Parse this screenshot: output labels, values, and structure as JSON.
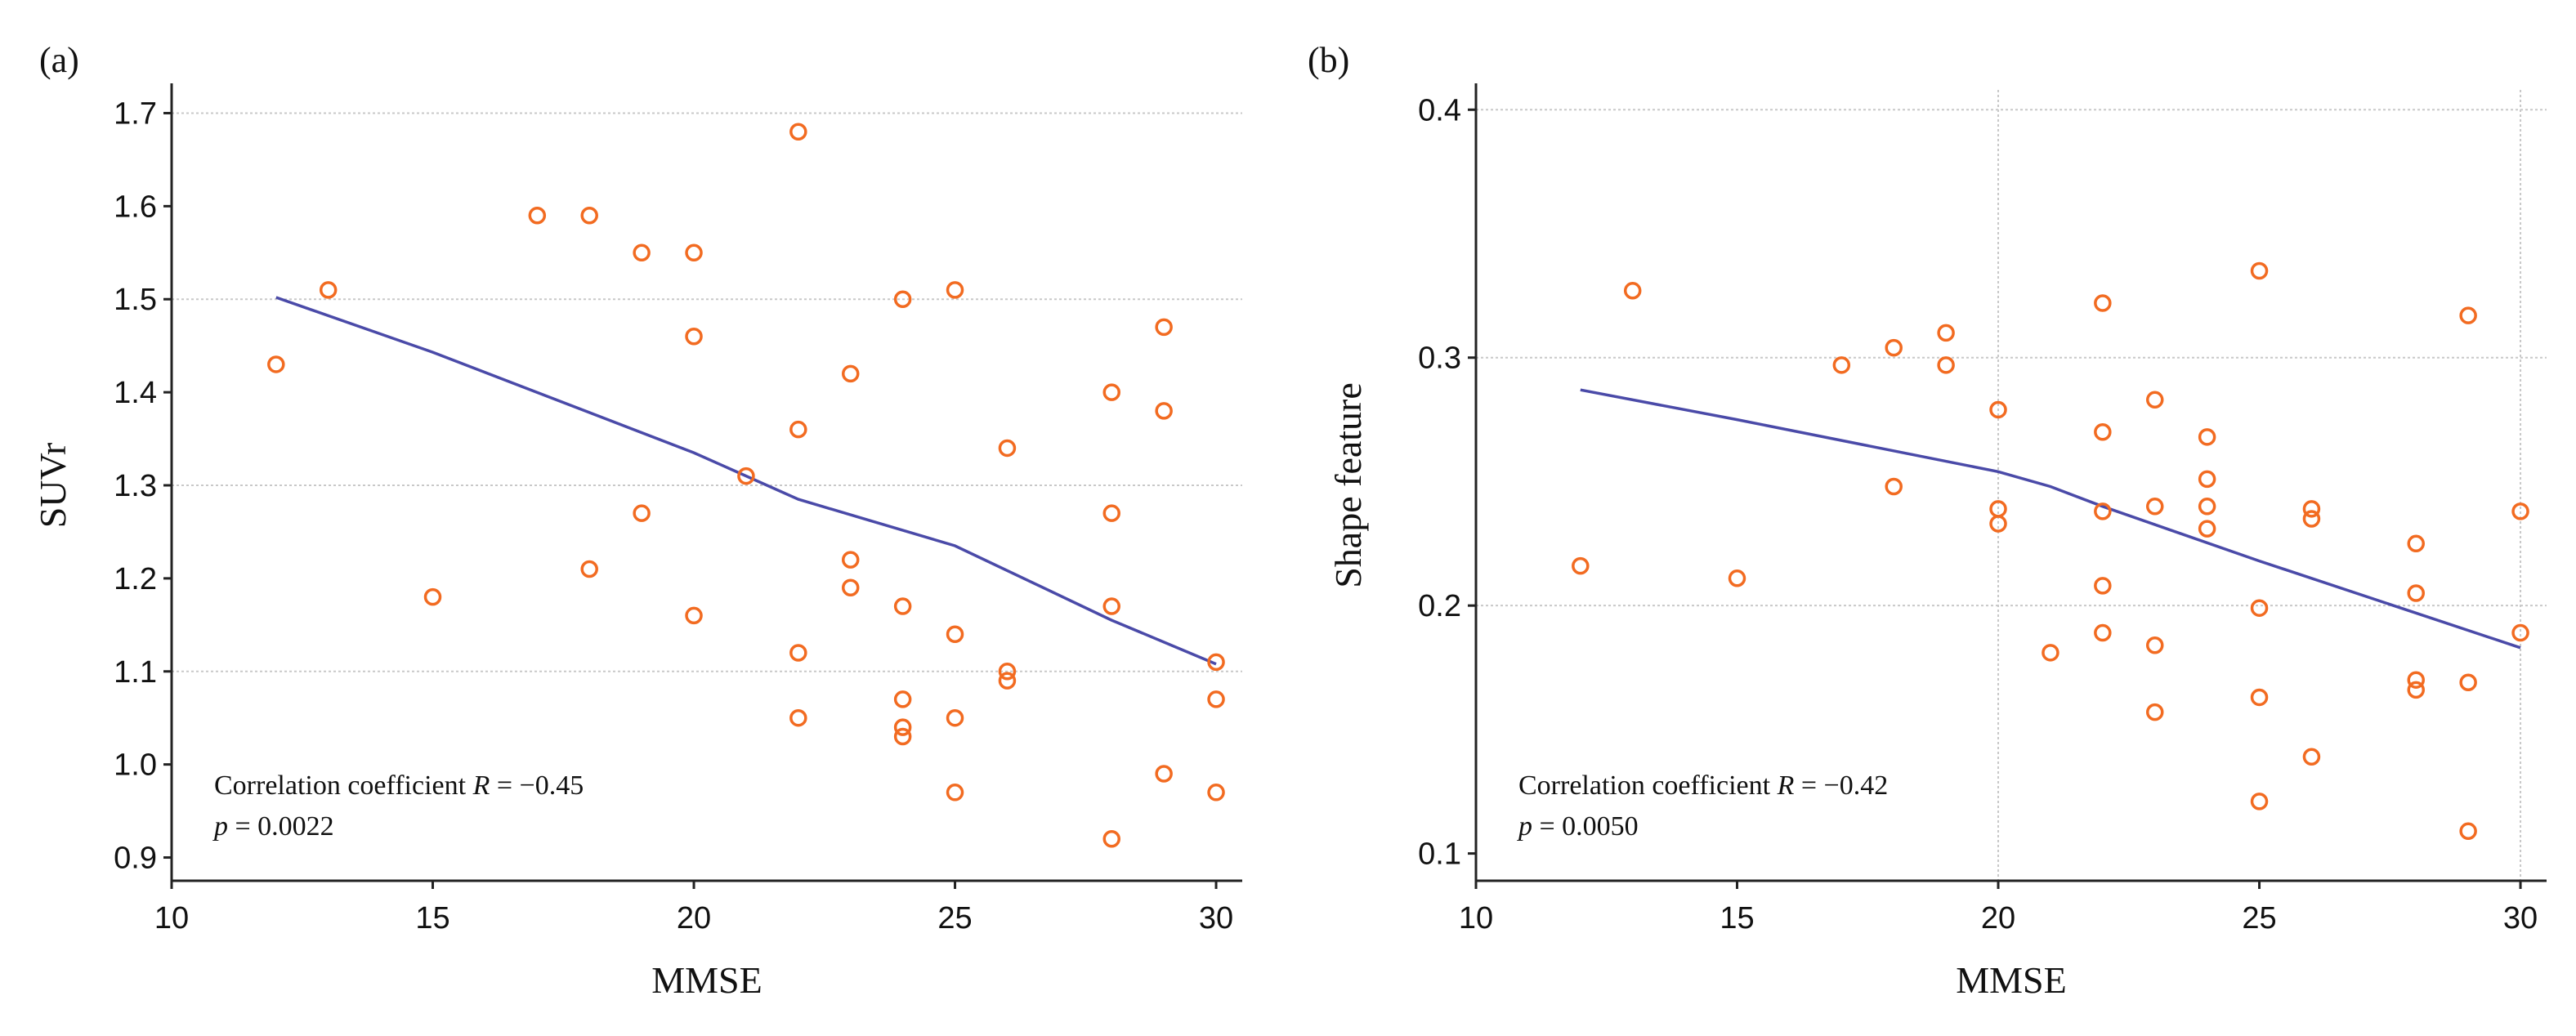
{
  "colors": {
    "points": "#f26b21",
    "fit": "#4a4aa8",
    "axis": "#222222",
    "grid": "#c8c8c8"
  },
  "chart_data": [
    {
      "type": "scatter",
      "panel": "(a)",
      "xlabel": "MMSE",
      "ylabel": "SUVr",
      "xlim": [
        10,
        30.5
      ],
      "ylim": [
        0.875,
        1.725
      ],
      "xticks": [
        10,
        15,
        20,
        25,
        30
      ],
      "yticks": [
        0.9,
        1.0,
        1.1,
        1.2,
        1.3,
        1.4,
        1.5,
        1.6,
        1.7
      ],
      "ytick_labels": [
        "0.9",
        "1.0",
        "1.1",
        "1.2",
        "1.3",
        "1.4",
        "1.5",
        "1.6",
        "1.7"
      ],
      "grid_y": [
        1.1,
        1.3,
        1.5,
        1.7
      ],
      "grid_x": [],
      "points": [
        [
          12,
          1.43
        ],
        [
          13,
          1.51
        ],
        [
          15,
          1.18
        ],
        [
          17,
          1.59
        ],
        [
          18,
          1.59
        ],
        [
          18,
          1.21
        ],
        [
          19,
          1.55
        ],
        [
          19,
          1.27
        ],
        [
          20,
          1.55
        ],
        [
          20,
          1.46
        ],
        [
          20,
          1.16
        ],
        [
          21,
          1.31
        ],
        [
          22,
          1.68
        ],
        [
          22,
          1.36
        ],
        [
          22,
          1.12
        ],
        [
          22,
          1.05
        ],
        [
          23,
          1.42
        ],
        [
          23,
          1.22
        ],
        [
          23,
          1.19
        ],
        [
          24,
          1.5
        ],
        [
          24,
          1.17
        ],
        [
          24,
          1.07
        ],
        [
          24,
          1.04
        ],
        [
          24,
          1.03
        ],
        [
          25,
          1.51
        ],
        [
          25,
          1.14
        ],
        [
          25,
          1.05
        ],
        [
          25,
          0.97
        ],
        [
          26,
          1.34
        ],
        [
          26,
          1.1
        ],
        [
          26,
          1.09
        ],
        [
          28,
          1.4
        ],
        [
          28,
          1.27
        ],
        [
          28,
          1.17
        ],
        [
          28,
          0.92
        ],
        [
          29,
          1.47
        ],
        [
          29,
          1.38
        ],
        [
          29,
          0.99
        ],
        [
          30,
          1.11
        ],
        [
          30,
          1.07
        ],
        [
          30,
          0.97
        ]
      ],
      "fit_line": [
        [
          12,
          1.502
        ],
        [
          15,
          1.443
        ],
        [
          20,
          1.335
        ],
        [
          22,
          1.285
        ],
        [
          25,
          1.235
        ],
        [
          28,
          1.155
        ],
        [
          30,
          1.108
        ]
      ],
      "annotation": {
        "label": "Correlation coefficient",
        "r_label": "R",
        "r_value": "= −0.45",
        "p_label": "p",
        "p_value": "= 0.0022"
      }
    },
    {
      "type": "scatter",
      "panel": "(b)",
      "xlabel": "MMSE",
      "ylabel": "Shape feature",
      "xlim": [
        10,
        30.5
      ],
      "ylim": [
        0.089,
        0.408
      ],
      "xticks": [
        10,
        15,
        20,
        25,
        30
      ],
      "yticks": [
        0.1,
        0.2,
        0.3,
        0.4
      ],
      "ytick_labels": [
        "0.1",
        "0.2",
        "0.3",
        "0.4"
      ],
      "grid_y": [
        0.2,
        0.3,
        0.4
      ],
      "grid_x": [
        20,
        30
      ],
      "points": [
        [
          12,
          0.216
        ],
        [
          13,
          0.327
        ],
        [
          15,
          0.211
        ],
        [
          17,
          0.297
        ],
        [
          18,
          0.304
        ],
        [
          18,
          0.248
        ],
        [
          19,
          0.31
        ],
        [
          19,
          0.297
        ],
        [
          20,
          0.279
        ],
        [
          20,
          0.239
        ],
        [
          20,
          0.233
        ],
        [
          21,
          0.181
        ],
        [
          22,
          0.322
        ],
        [
          22,
          0.27
        ],
        [
          22,
          0.238
        ],
        [
          22,
          0.208
        ],
        [
          22,
          0.189
        ],
        [
          23,
          0.283
        ],
        [
          23,
          0.24
        ],
        [
          23,
          0.184
        ],
        [
          23,
          0.157
        ],
        [
          24,
          0.268
        ],
        [
          24,
          0.251
        ],
        [
          24,
          0.24
        ],
        [
          24,
          0.231
        ],
        [
          25,
          0.335
        ],
        [
          25,
          0.199
        ],
        [
          25,
          0.163
        ],
        [
          25,
          0.121
        ],
        [
          26,
          0.239
        ],
        [
          26,
          0.235
        ],
        [
          26,
          0.139
        ],
        [
          28,
          0.225
        ],
        [
          28,
          0.205
        ],
        [
          28,
          0.17
        ],
        [
          28,
          0.166
        ],
        [
          29,
          0.317
        ],
        [
          29,
          0.169
        ],
        [
          29,
          0.109
        ],
        [
          30,
          0.238
        ],
        [
          30,
          0.189
        ]
      ],
      "fit_line": [
        [
          12,
          0.287
        ],
        [
          15,
          0.275
        ],
        [
          20,
          0.254
        ],
        [
          21,
          0.248
        ],
        [
          22,
          0.24
        ],
        [
          25,
          0.218
        ],
        [
          30,
          0.183
        ]
      ],
      "annotation": {
        "label": "Correlation coefficient",
        "r_label": "R",
        "r_value": "= −0.42",
        "p_label": "p",
        "p_value": "= 0.0050"
      }
    }
  ]
}
